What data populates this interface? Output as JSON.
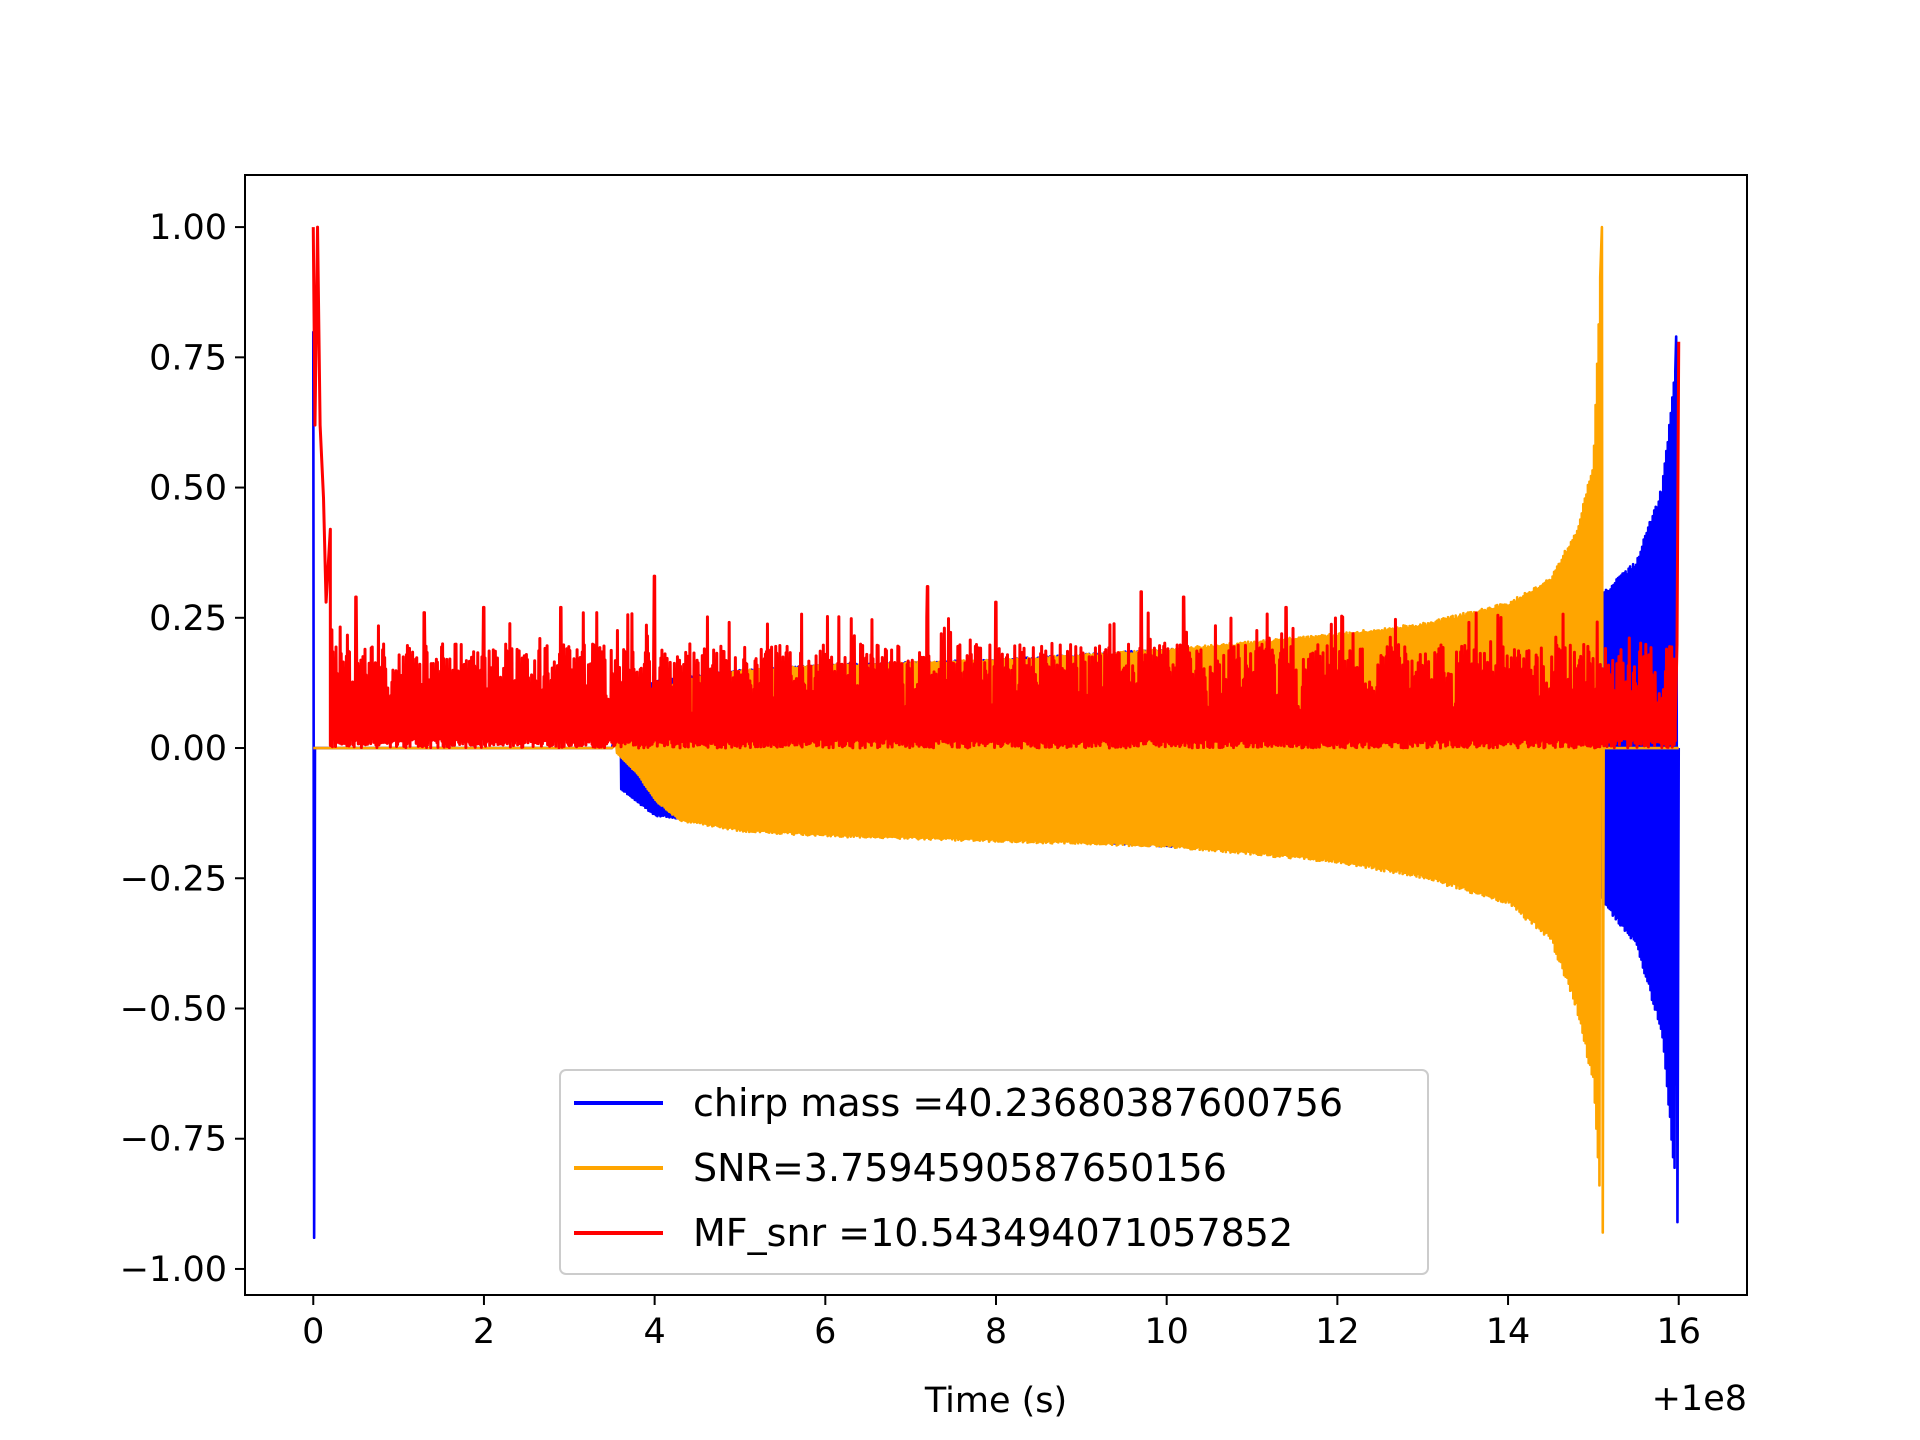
{
  "chart_data": {
    "type": "line",
    "title": "",
    "xlabel": "Time (s)",
    "ylabel": "",
    "x_offset_label": "+1e8",
    "xlim": [
      -0.8,
      16.8
    ],
    "ylim": [
      -1.05,
      1.1
    ],
    "xticks": [
      0,
      2,
      4,
      6,
      8,
      10,
      12,
      14,
      16
    ],
    "xtick_labels": [
      "0",
      "2",
      "4",
      "6",
      "8",
      "10",
      "12",
      "14",
      "16"
    ],
    "yticks": [
      1.0,
      0.75,
      0.5,
      0.25,
      0.0,
      -0.25,
      -0.5,
      -0.75,
      -1.0
    ],
    "ytick_labels": [
      "1.00",
      "0.75",
      "0.50",
      "0.25",
      "0.00",
      "−0.25",
      "−0.50",
      "−0.75",
      "−1.00"
    ],
    "grid": false,
    "legend_position": "lower-center",
    "series": [
      {
        "name": "chirp mass =40.23680387600756",
        "color": "#0000ff",
        "envelope_x": [
          0.0,
          0.02,
          0.05,
          0.1,
          1.0,
          3.0,
          4.0,
          5.0,
          6.0,
          8.0,
          10.0,
          12.0,
          13.0,
          14.0,
          15.0,
          15.12,
          15.5,
          15.8,
          16.0
        ],
        "envelope_upper": [
          0.8,
          0.0,
          0.0,
          0.0,
          0.0,
          0.0,
          0.13,
          0.15,
          0.16,
          0.17,
          0.19,
          0.2,
          0.21,
          0.22,
          0.24,
          0.3,
          0.36,
          0.5,
          0.79
        ],
        "envelope_lower": [
          -0.94,
          0.0,
          0.0,
          0.0,
          0.0,
          0.0,
          -0.13,
          -0.15,
          -0.16,
          -0.17,
          -0.19,
          -0.2,
          -0.21,
          -0.22,
          -0.24,
          -0.3,
          -0.38,
          -0.55,
          -0.91
        ]
      },
      {
        "name": "SNR=3.7594590587650156",
        "color": "#ffa500",
        "envelope_x": [
          0.0,
          2.0,
          3.5,
          3.8,
          4.0,
          4.3,
          5.0,
          6.0,
          8.0,
          10.0,
          12.0,
          13.0,
          14.0,
          14.5,
          14.8,
          15.0,
          15.1,
          15.12
        ],
        "envelope_upper": [
          0.0,
          0.0,
          0.0,
          0.05,
          0.1,
          0.13,
          0.15,
          0.16,
          0.17,
          0.19,
          0.22,
          0.24,
          0.28,
          0.33,
          0.42,
          0.55,
          1.0,
          0.0
        ],
        "envelope_lower": [
          0.0,
          0.0,
          0.0,
          -0.05,
          -0.1,
          -0.14,
          -0.16,
          -0.17,
          -0.18,
          -0.19,
          -0.22,
          -0.25,
          -0.3,
          -0.37,
          -0.5,
          -0.65,
          -0.93,
          0.0
        ]
      },
      {
        "name": "MF_snr =10.543494071057852",
        "color": "#ff0000",
        "start_x": [
          0.0,
          0.02,
          0.05,
          0.08,
          0.12,
          0.15,
          0.2
        ],
        "start_y": [
          1.0,
          0.62,
          1.0,
          0.62,
          0.48,
          0.28,
          0.42
        ],
        "end_x": [
          15.96,
          15.98,
          16.0
        ],
        "end_y": [
          0.05,
          0.2,
          0.78
        ],
        "band_range": [
          0.2,
          15.96
        ],
        "band_baseline": 0.0,
        "band_typical_high": 0.2,
        "spike_x": [
          0.5,
          1.3,
          2.0,
          2.9,
          4.0,
          7.2,
          8.0,
          9.7,
          10.2,
          11.4
        ],
        "spike_y": [
          0.29,
          0.26,
          0.27,
          0.27,
          0.33,
          0.31,
          0.28,
          0.3,
          0.29,
          0.27
        ]
      }
    ]
  }
}
